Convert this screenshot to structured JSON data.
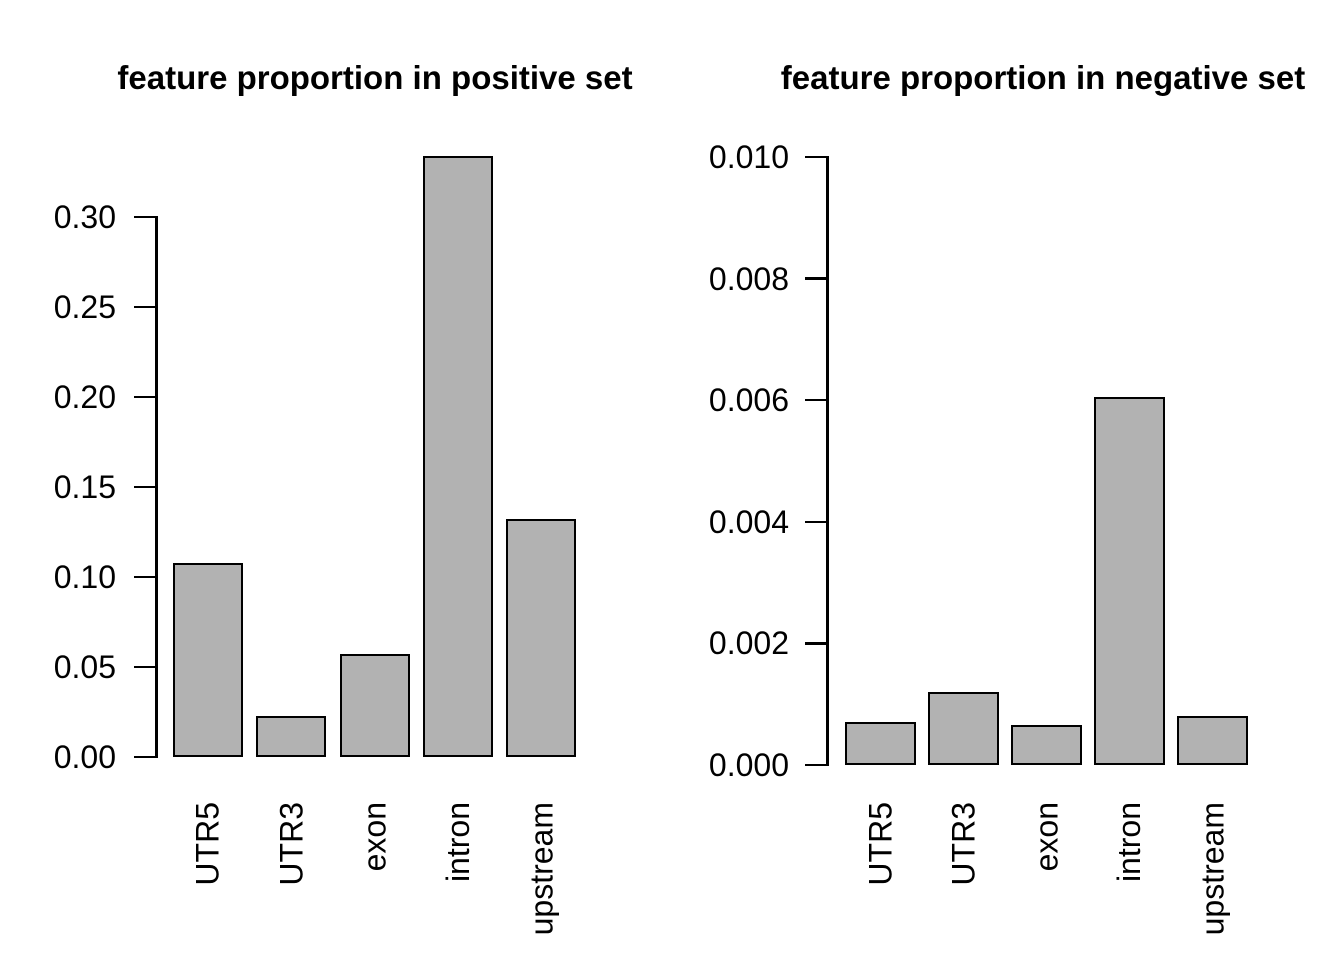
{
  "figure": {
    "background": "#ffffff",
    "text_color": "#000000",
    "axis_color": "#000000"
  },
  "chart_data": [
    {
      "type": "bar",
      "title": "feature proportion in positive set",
      "categories": [
        "UTR5",
        "UTR3",
        "exon",
        "intron",
        "upstream"
      ],
      "values": [
        0.108,
        0.023,
        0.057,
        0.334,
        0.132
      ],
      "xlabel": "",
      "ylabel": "",
      "ylim": [
        0,
        0.335
      ],
      "yticks": [
        0,
        0.05,
        0.1,
        0.15,
        0.2,
        0.25,
        0.3
      ],
      "ytick_labels": [
        "0.00",
        "0.05",
        "0.10",
        "0.15",
        "0.20",
        "0.25",
        "0.30"
      ],
      "grid": false,
      "legend_position": "none",
      "bar_fill": "#b2b2b2",
      "bar_border": "#000000"
    },
    {
      "type": "bar",
      "title": "feature proportion in negative set",
      "categories": [
        "UTR5",
        "UTR3",
        "exon",
        "intron",
        "upstream"
      ],
      "values": [
        0.0007,
        0.0012,
        0.00065,
        0.00605,
        0.0008
      ],
      "xlabel": "",
      "ylabel": "",
      "ylim": [
        0,
        0.01
      ],
      "yticks": [
        0,
        0.002,
        0.004,
        0.006,
        0.008,
        0.01
      ],
      "ytick_labels": [
        "0.000",
        "0.002",
        "0.004",
        "0.006",
        "0.008",
        "0.010"
      ],
      "grid": false,
      "legend_position": "none",
      "bar_fill": "#b2b2b2",
      "bar_border": "#000000"
    }
  ]
}
